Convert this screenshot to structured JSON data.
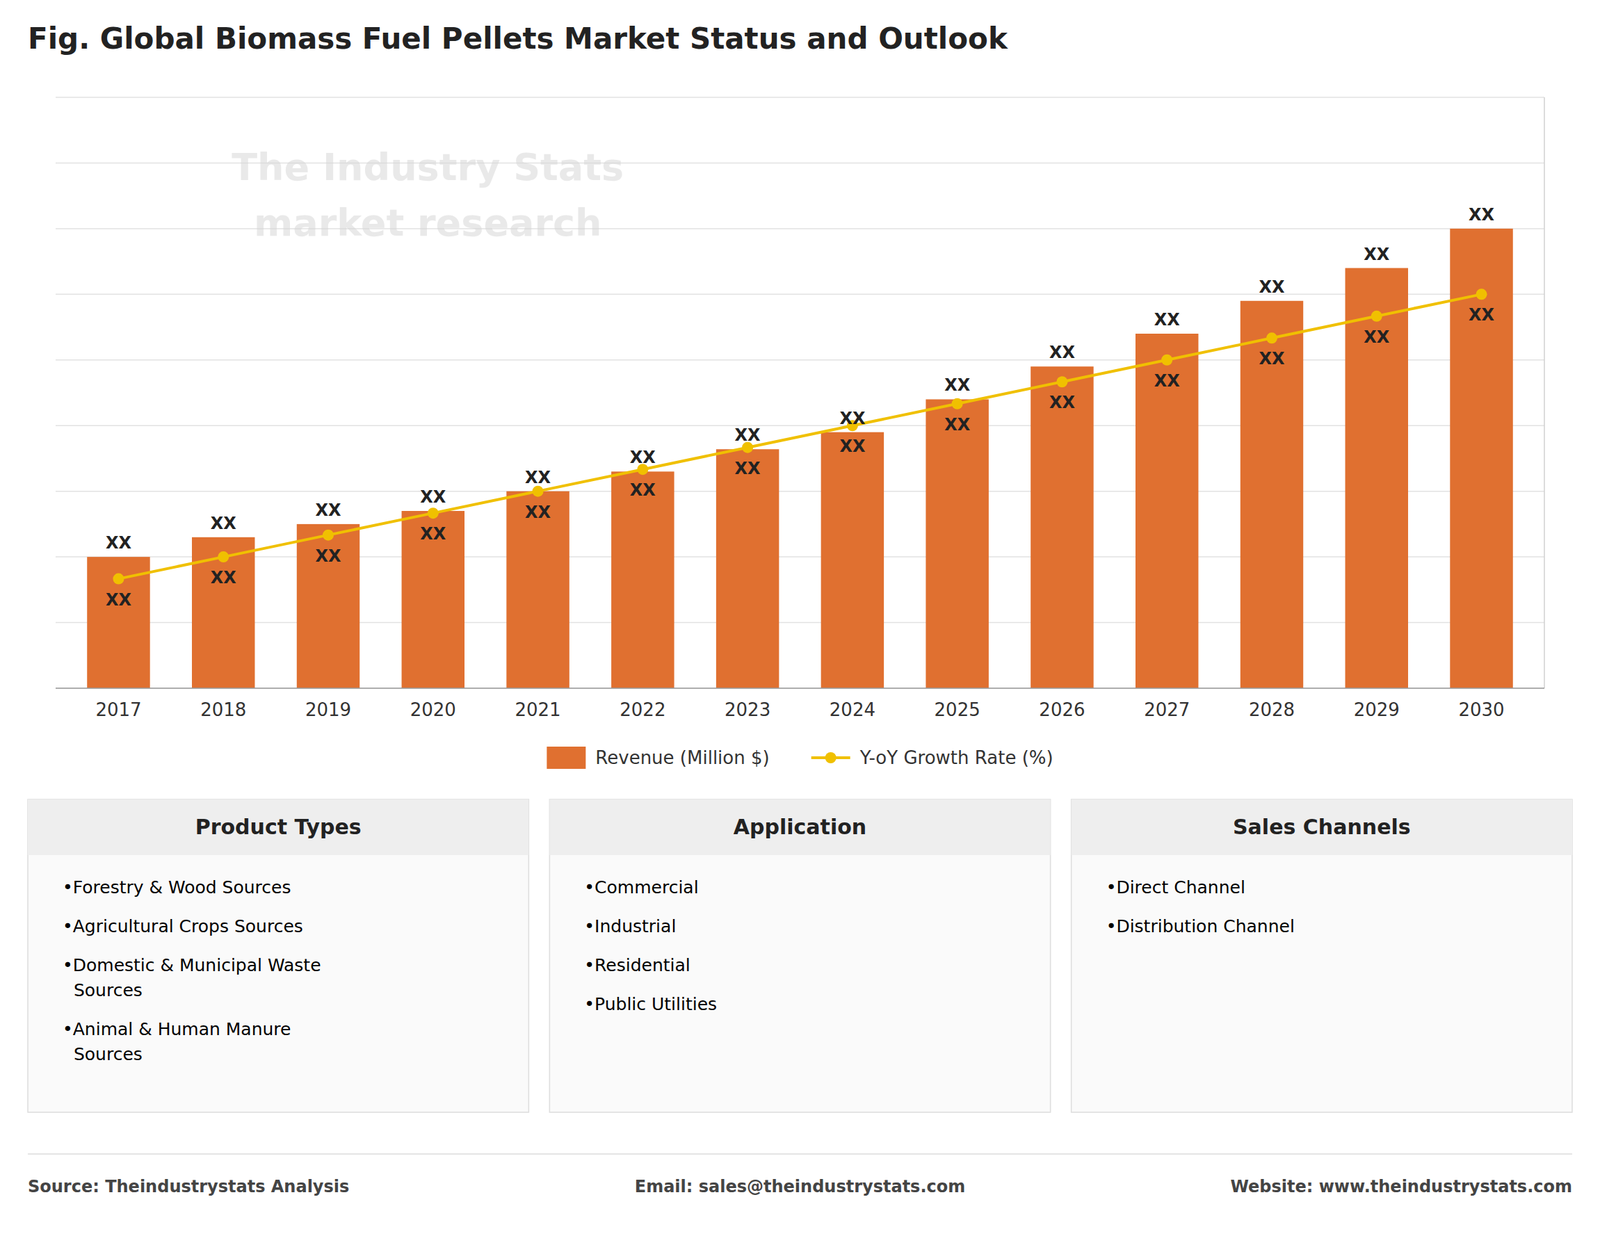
{
  "chart_data": {
    "type": "bar",
    "title": "Fig. Global Biomass Fuel Pellets Market Status and Outlook",
    "categories": [
      "2017",
      "2018",
      "2019",
      "2020",
      "2021",
      "2022",
      "2023",
      "2024",
      "2025",
      "2026",
      "2027",
      "2028",
      "2029",
      "2030"
    ],
    "series": [
      {
        "name": "Revenue (Million $)",
        "type": "bar",
        "color": "#e07030",
        "values": [
          1,
          1.15,
          1.25,
          1.35,
          1.5,
          1.65,
          1.82,
          1.95,
          2.2,
          2.45,
          2.7,
          2.95,
          3.2,
          3.5
        ],
        "value_labels": [
          "XX",
          "XX",
          "XX",
          "XX",
          "XX",
          "XX",
          "XX",
          "XX",
          "XX",
          "XX",
          "XX",
          "XX",
          "XX",
          "XX"
        ]
      },
      {
        "name": "Y-oY Growth Rate (%)",
        "type": "line",
        "axis": "y2",
        "color": "#f0c000",
        "marker": "circle",
        "line_style": "solid",
        "values": [
          1,
          1.1,
          1.2,
          1.3,
          1.4,
          1.5,
          1.6,
          1.7,
          1.8,
          1.9,
          2.0,
          2.1,
          2.2,
          2.3
        ],
        "value_labels": [
          "XX",
          "XX",
          "XX",
          "XX",
          "XX",
          "XX",
          "XX",
          "XX",
          "XX",
          "XX",
          "XX",
          "XX",
          "XX",
          "XX"
        ]
      }
    ],
    "ylim": [
      0,
      4.5
    ],
    "yticks": [
      0,
      0.5,
      1,
      1.5,
      2,
      2.5,
      3,
      3.5,
      4,
      4.5
    ],
    "y2lim": [
      0.5,
      3.2
    ],
    "grid": true,
    "legend": "bottom",
    "tick_labels": "x",
    "watermark": "The Industry Stats\nmarket research",
    "panels": [
      {
        "title": "Product Types",
        "items": [
          "•Forestry & Wood Sources",
          "•Agricultural Crops Sources",
          "•Domestic & Municipal Waste\n  Sources",
          "•Animal & Human Manure\n  Sources"
        ]
      },
      {
        "title": "Application",
        "items": [
          "•Commercial",
          "•Industrial",
          "•Residential",
          "•Public Utilities"
        ]
      },
      {
        "title": "Sales Channels",
        "items": [
          "•Direct Channel",
          "•Distribution Channel"
        ]
      }
    ],
    "footer": [
      "Source: Theindustrystats Analysis",
      "Email: sales@theindustrystats.com",
      "Website: www.theindustrystats.com"
    ]
  }
}
